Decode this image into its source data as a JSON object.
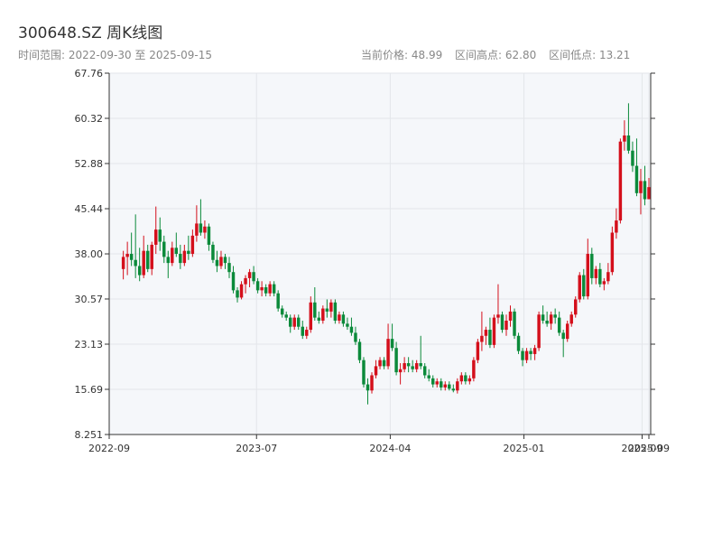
{
  "header": {
    "title": "300648.SZ 周K线图",
    "subtitle": "时间范围: 2022-09-30 至 2025-09-15",
    "stats": {
      "current_price": "当前价格: 48.99",
      "range_high": "区间高点: 62.80",
      "range_low": "区间低点: 13.21"
    }
  },
  "colors": {
    "up": "#d40f1b",
    "down": "#0b8a3a",
    "plot_bg": "#f5f7fa",
    "grid": "#e3e6ea",
    "axis": "#333333"
  },
  "chart_data": {
    "type": "candlestick",
    "title": "300648.SZ 周K线图",
    "xlabel": "",
    "ylabel": "",
    "ylim": [
      8.251,
      67.76
    ],
    "yticks": [
      8.251,
      15.69,
      23.13,
      30.57,
      38.0,
      45.44,
      52.88,
      60.32,
      67.76
    ],
    "ytick_labels": [
      "8.251",
      "15.69",
      "23.13",
      "30.57",
      "38.00",
      "45.44",
      "52.88",
      "60.32",
      "67.76"
    ],
    "xticks": [
      {
        "date": "2022-09-01",
        "label": "2022-09"
      },
      {
        "date": "2023-07-01",
        "label": "2023-07"
      },
      {
        "date": "2024-04-01",
        "label": "2024-04"
      },
      {
        "date": "2025-01-01",
        "label": "2025-01"
      },
      {
        "date": "2025-09-01",
        "label": "2025-09"
      },
      {
        "date": "2025-09-15",
        "label": "2025-09"
      }
    ],
    "grid": true,
    "start_date": "2022-09-30",
    "end_date": "2025-09-15",
    "candles": [
      {
        "o": 35.5,
        "h": 38.5,
        "l": 33.8,
        "c": 37.5
      },
      {
        "o": 37.5,
        "h": 40.0,
        "l": 34.5,
        "c": 38.0
      },
      {
        "o": 38.0,
        "h": 41.5,
        "l": 36.0,
        "c": 37.0
      },
      {
        "o": 37.0,
        "h": 44.5,
        "l": 34.0,
        "c": 36.0
      },
      {
        "o": 36.0,
        "h": 39.0,
        "l": 33.5,
        "c": 34.5
      },
      {
        "o": 34.5,
        "h": 41.0,
        "l": 34.0,
        "c": 38.5
      },
      {
        "o": 38.5,
        "h": 39.5,
        "l": 35.0,
        "c": 35.5
      },
      {
        "o": 35.5,
        "h": 40.0,
        "l": 34.5,
        "c": 39.5
      },
      {
        "o": 39.5,
        "h": 45.8,
        "l": 38.0,
        "c": 42.0
      },
      {
        "o": 42.0,
        "h": 44.0,
        "l": 38.5,
        "c": 40.0
      },
      {
        "o": 40.0,
        "h": 41.0,
        "l": 36.5,
        "c": 37.5
      },
      {
        "o": 37.5,
        "h": 38.5,
        "l": 34.0,
        "c": 36.5
      },
      {
        "o": 36.5,
        "h": 40.0,
        "l": 36.0,
        "c": 39.0
      },
      {
        "o": 39.0,
        "h": 41.5,
        "l": 37.5,
        "c": 38.0
      },
      {
        "o": 38.0,
        "h": 39.5,
        "l": 35.5,
        "c": 36.5
      },
      {
        "o": 36.5,
        "h": 39.5,
        "l": 36.0,
        "c": 38.5
      },
      {
        "o": 38.5,
        "h": 41.0,
        "l": 37.0,
        "c": 38.0
      },
      {
        "o": 38.0,
        "h": 42.0,
        "l": 37.5,
        "c": 41.0
      },
      {
        "o": 41.0,
        "h": 46.0,
        "l": 40.0,
        "c": 43.0
      },
      {
        "o": 43.0,
        "h": 47.0,
        "l": 41.0,
        "c": 41.5
      },
      {
        "o": 41.5,
        "h": 43.5,
        "l": 40.5,
        "c": 42.5
      },
      {
        "o": 42.5,
        "h": 43.0,
        "l": 38.5,
        "c": 39.5
      },
      {
        "o": 39.5,
        "h": 40.0,
        "l": 36.5,
        "c": 37.0
      },
      {
        "o": 37.0,
        "h": 38.5,
        "l": 35.0,
        "c": 36.0
      },
      {
        "o": 36.0,
        "h": 38.5,
        "l": 35.5,
        "c": 37.5
      },
      {
        "o": 37.5,
        "h": 38.0,
        "l": 35.5,
        "c": 36.5
      },
      {
        "o": 36.5,
        "h": 37.5,
        "l": 34.0,
        "c": 35.0
      },
      {
        "o": 35.0,
        "h": 36.0,
        "l": 31.5,
        "c": 32.0
      },
      {
        "o": 32.0,
        "h": 32.5,
        "l": 30.0,
        "c": 30.8
      },
      {
        "o": 30.8,
        "h": 33.5,
        "l": 30.5,
        "c": 33.0
      },
      {
        "o": 33.0,
        "h": 34.5,
        "l": 31.5,
        "c": 34.0
      },
      {
        "o": 34.0,
        "h": 35.5,
        "l": 32.5,
        "c": 35.0
      },
      {
        "o": 35.0,
        "h": 36.0,
        "l": 33.0,
        "c": 33.5
      },
      {
        "o": 33.5,
        "h": 34.0,
        "l": 31.5,
        "c": 32.0
      },
      {
        "o": 32.0,
        "h": 33.5,
        "l": 31.0,
        "c": 32.5
      },
      {
        "o": 32.5,
        "h": 33.0,
        "l": 31.0,
        "c": 31.5
      },
      {
        "o": 31.5,
        "h": 33.5,
        "l": 31.0,
        "c": 33.0
      },
      {
        "o": 33.0,
        "h": 33.5,
        "l": 31.0,
        "c": 31.5
      },
      {
        "o": 31.5,
        "h": 32.0,
        "l": 28.5,
        "c": 29.0
      },
      {
        "o": 29.0,
        "h": 29.5,
        "l": 27.5,
        "c": 28.0
      },
      {
        "o": 28.0,
        "h": 28.5,
        "l": 27.0,
        "c": 27.5
      },
      {
        "o": 27.5,
        "h": 28.0,
        "l": 25.0,
        "c": 26.0
      },
      {
        "o": 26.0,
        "h": 28.0,
        "l": 25.5,
        "c": 27.5
      },
      {
        "o": 27.5,
        "h": 28.0,
        "l": 25.5,
        "c": 26.0
      },
      {
        "o": 26.0,
        "h": 27.0,
        "l": 24.0,
        "c": 24.5
      },
      {
        "o": 24.5,
        "h": 26.0,
        "l": 24.0,
        "c": 25.5
      },
      {
        "o": 25.5,
        "h": 31.0,
        "l": 25.0,
        "c": 30.0
      },
      {
        "o": 30.0,
        "h": 32.5,
        "l": 27.0,
        "c": 27.5
      },
      {
        "o": 27.5,
        "h": 28.5,
        "l": 26.5,
        "c": 27.0
      },
      {
        "o": 27.0,
        "h": 29.5,
        "l": 26.5,
        "c": 29.0
      },
      {
        "o": 29.0,
        "h": 30.5,
        "l": 27.5,
        "c": 28.5
      },
      {
        "o": 28.5,
        "h": 30.5,
        "l": 27.5,
        "c": 30.0
      },
      {
        "o": 30.0,
        "h": 30.5,
        "l": 26.5,
        "c": 27.0
      },
      {
        "o": 27.0,
        "h": 28.5,
        "l": 26.5,
        "c": 28.0
      },
      {
        "o": 28.0,
        "h": 28.5,
        "l": 26.0,
        "c": 26.5
      },
      {
        "o": 26.5,
        "h": 27.5,
        "l": 25.5,
        "c": 26.0
      },
      {
        "o": 26.0,
        "h": 27.5,
        "l": 24.5,
        "c": 25.0
      },
      {
        "o": 25.0,
        "h": 26.0,
        "l": 23.0,
        "c": 23.5
      },
      {
        "o": 23.5,
        "h": 24.0,
        "l": 20.0,
        "c": 20.5
      },
      {
        "o": 20.5,
        "h": 21.0,
        "l": 16.0,
        "c": 16.5
      },
      {
        "o": 16.5,
        "h": 17.5,
        "l": 13.21,
        "c": 15.5
      },
      {
        "o": 15.5,
        "h": 18.5,
        "l": 15.0,
        "c": 18.0
      },
      {
        "o": 18.0,
        "h": 20.5,
        "l": 17.5,
        "c": 19.5
      },
      {
        "o": 19.5,
        "h": 21.0,
        "l": 19.0,
        "c": 20.5
      },
      {
        "o": 20.5,
        "h": 21.0,
        "l": 19.0,
        "c": 19.5
      },
      {
        "o": 19.5,
        "h": 26.5,
        "l": 19.0,
        "c": 24.0
      },
      {
        "o": 24.0,
        "h": 26.5,
        "l": 22.0,
        "c": 22.5
      },
      {
        "o": 22.5,
        "h": 23.5,
        "l": 18.0,
        "c": 18.5
      },
      {
        "o": 18.5,
        "h": 20.0,
        "l": 16.5,
        "c": 19.0
      },
      {
        "o": 19.0,
        "h": 21.0,
        "l": 18.5,
        "c": 20.0
      },
      {
        "o": 20.0,
        "h": 21.0,
        "l": 18.5,
        "c": 19.5
      },
      {
        "o": 19.5,
        "h": 20.5,
        "l": 18.5,
        "c": 19.0
      },
      {
        "o": 19.0,
        "h": 20.5,
        "l": 18.5,
        "c": 20.0
      },
      {
        "o": 20.0,
        "h": 24.5,
        "l": 19.0,
        "c": 19.5
      },
      {
        "o": 19.5,
        "h": 20.0,
        "l": 17.5,
        "c": 18.0
      },
      {
        "o": 18.0,
        "h": 19.0,
        "l": 17.0,
        "c": 17.5
      },
      {
        "o": 17.5,
        "h": 18.0,
        "l": 16.0,
        "c": 16.5
      },
      {
        "o": 16.5,
        "h": 17.5,
        "l": 16.0,
        "c": 17.0
      },
      {
        "o": 17.0,
        "h": 17.5,
        "l": 15.5,
        "c": 16.0
      },
      {
        "o": 16.0,
        "h": 17.0,
        "l": 15.5,
        "c": 16.5
      },
      {
        "o": 16.5,
        "h": 17.0,
        "l": 15.5,
        "c": 15.8
      },
      {
        "o": 15.8,
        "h": 16.5,
        "l": 15.2,
        "c": 15.5
      },
      {
        "o": 15.5,
        "h": 17.5,
        "l": 15.0,
        "c": 17.0
      },
      {
        "o": 17.0,
        "h": 18.5,
        "l": 16.5,
        "c": 18.0
      },
      {
        "o": 18.0,
        "h": 18.5,
        "l": 16.5,
        "c": 17.0
      },
      {
        "o": 17.0,
        "h": 18.0,
        "l": 16.5,
        "c": 17.5
      },
      {
        "o": 17.5,
        "h": 21.0,
        "l": 17.0,
        "c": 20.5
      },
      {
        "o": 20.5,
        "h": 24.0,
        "l": 20.0,
        "c": 23.5
      },
      {
        "o": 23.5,
        "h": 28.5,
        "l": 22.0,
        "c": 24.5
      },
      {
        "o": 24.5,
        "h": 26.0,
        "l": 23.0,
        "c": 25.5
      },
      {
        "o": 25.5,
        "h": 27.5,
        "l": 22.5,
        "c": 23.0
      },
      {
        "o": 23.0,
        "h": 28.0,
        "l": 22.5,
        "c": 27.5
      },
      {
        "o": 27.5,
        "h": 33.0,
        "l": 26.5,
        "c": 28.0
      },
      {
        "o": 28.0,
        "h": 28.5,
        "l": 25.0,
        "c": 25.5
      },
      {
        "o": 25.5,
        "h": 28.0,
        "l": 24.5,
        "c": 27.0
      },
      {
        "o": 27.0,
        "h": 29.5,
        "l": 26.0,
        "c": 28.5
      },
      {
        "o": 28.5,
        "h": 29.0,
        "l": 24.0,
        "c": 24.5
      },
      {
        "o": 24.5,
        "h": 25.0,
        "l": 21.5,
        "c": 22.0
      },
      {
        "o": 22.0,
        "h": 22.5,
        "l": 19.5,
        "c": 20.5
      },
      {
        "o": 20.5,
        "h": 22.5,
        "l": 20.0,
        "c": 22.0
      },
      {
        "o": 22.0,
        "h": 22.5,
        "l": 20.5,
        "c": 21.5
      },
      {
        "o": 21.5,
        "h": 23.0,
        "l": 20.5,
        "c": 22.5
      },
      {
        "o": 22.5,
        "h": 28.5,
        "l": 22.0,
        "c": 28.0
      },
      {
        "o": 28.0,
        "h": 29.5,
        "l": 26.5,
        "c": 27.0
      },
      {
        "o": 27.0,
        "h": 28.5,
        "l": 26.0,
        "c": 26.5
      },
      {
        "o": 26.5,
        "h": 28.5,
        "l": 25.5,
        "c": 28.0
      },
      {
        "o": 28.0,
        "h": 29.0,
        "l": 26.5,
        "c": 27.5
      },
      {
        "o": 27.5,
        "h": 28.5,
        "l": 24.5,
        "c": 25.0
      },
      {
        "o": 25.0,
        "h": 25.5,
        "l": 21.0,
        "c": 24.0
      },
      {
        "o": 24.0,
        "h": 27.0,
        "l": 23.5,
        "c": 26.5
      },
      {
        "o": 26.5,
        "h": 28.5,
        "l": 26.0,
        "c": 28.0
      },
      {
        "o": 28.0,
        "h": 31.0,
        "l": 27.5,
        "c": 30.5
      },
      {
        "o": 30.5,
        "h": 35.0,
        "l": 30.0,
        "c": 34.5
      },
      {
        "o": 34.5,
        "h": 35.5,
        "l": 30.5,
        "c": 31.0
      },
      {
        "o": 31.0,
        "h": 40.5,
        "l": 30.5,
        "c": 38.0
      },
      {
        "o": 38.0,
        "h": 39.0,
        "l": 33.0,
        "c": 34.0
      },
      {
        "o": 34.0,
        "h": 36.0,
        "l": 33.0,
        "c": 35.5
      },
      {
        "o": 35.5,
        "h": 36.5,
        "l": 32.5,
        "c": 33.0
      },
      {
        "o": 33.0,
        "h": 34.0,
        "l": 32.0,
        "c": 33.5
      },
      {
        "o": 33.5,
        "h": 36.5,
        "l": 33.0,
        "c": 35.0
      },
      {
        "o": 35.0,
        "h": 42.5,
        "l": 34.5,
        "c": 41.5
      },
      {
        "o": 41.5,
        "h": 45.5,
        "l": 40.5,
        "c": 43.5
      },
      {
        "o": 43.5,
        "h": 57.0,
        "l": 43.0,
        "c": 56.5
      },
      {
        "o": 56.5,
        "h": 60.0,
        "l": 55.0,
        "c": 57.5
      },
      {
        "o": 57.5,
        "h": 62.8,
        "l": 54.5,
        "c": 55.0
      },
      {
        "o": 55.0,
        "h": 56.5,
        "l": 51.5,
        "c": 52.5
      },
      {
        "o": 52.5,
        "h": 57.0,
        "l": 47.5,
        "c": 48.0
      },
      {
        "o": 48.0,
        "h": 52.0,
        "l": 44.5,
        "c": 50.0
      },
      {
        "o": 50.0,
        "h": 52.5,
        "l": 46.0,
        "c": 47.0
      },
      {
        "o": 47.0,
        "h": 50.5,
        "l": 47.0,
        "c": 48.99
      }
    ]
  }
}
